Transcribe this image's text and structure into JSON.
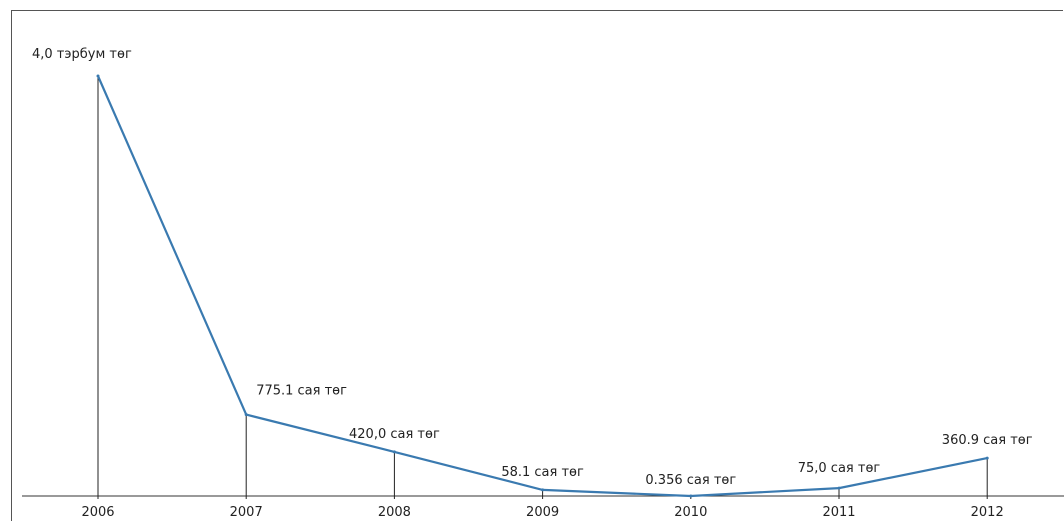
{
  "chart_data": {
    "type": "line",
    "categories": [
      "2006",
      "2007",
      "2008",
      "2009",
      "2010",
      "2011",
      "2012"
    ],
    "values": [
      4000,
      775.1,
      420.0,
      58.1,
      0.356,
      75.0,
      360.9
    ],
    "data_labels": [
      "4,0 тэрбум төг",
      "775.1 сая төг",
      "420,0 сая төг",
      "58.1 сая төг",
      "0.356 сая төг",
      "75,0 сая төг",
      "360.9 сая төг"
    ],
    "title": "",
    "xlabel": "",
    "ylabel": "",
    "ylim": [
      0,
      4500
    ],
    "grid": false,
    "legend": "none",
    "drop_lines": true,
    "colors": {
      "line": "#3a7ab0",
      "drop_line": "#222222",
      "axis": "#333333",
      "frame": "#555555"
    }
  }
}
